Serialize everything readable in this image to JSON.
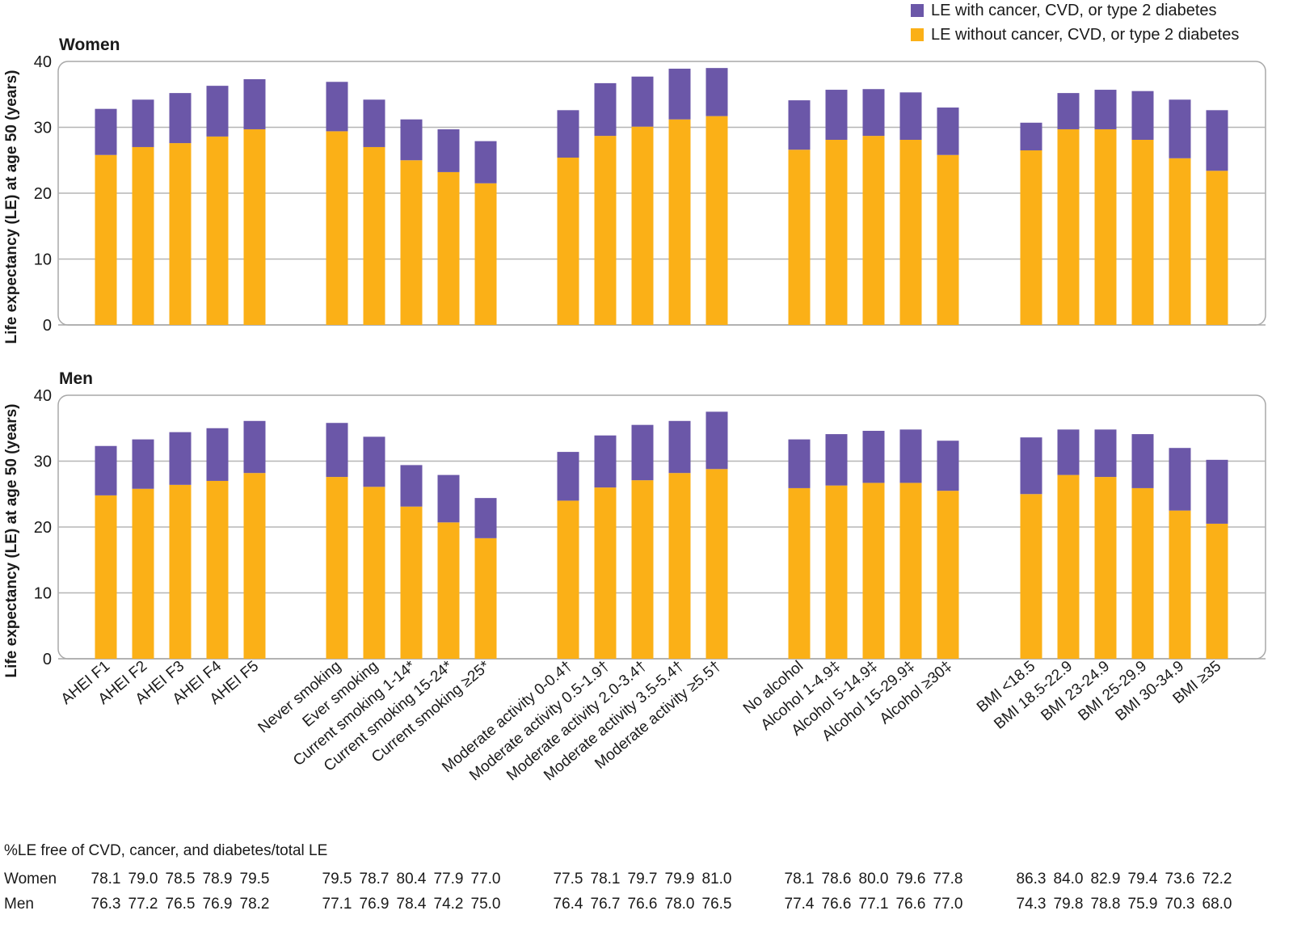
{
  "chart_data": {
    "type": "bar",
    "stacked": true,
    "legend": {
      "placement": "top-right",
      "entries": [
        {
          "name": "LE with cancer, CVD, or type 2 diabetes",
          "color": "#6b57a8"
        },
        {
          "name": "LE without cancer, CVD, or type 2 diabetes",
          "color": "#fbb017"
        }
      ]
    },
    "ylabel": "Life expectancy (LE) at age 50 (years)",
    "ylim": [
      0,
      40
    ],
    "yticks": [
      0,
      10,
      20,
      30,
      40
    ],
    "grid": true,
    "groups": [
      [
        "AHEI F1",
        "AHEI F2",
        "AHEI F3",
        "AHEI F4",
        "AHEI F5"
      ],
      [
        "Never smoking",
        "Ever smoking",
        "Current smoking 1-14*",
        "Current smoking 15-24*",
        "Current smoking ≥25*"
      ],
      [
        "Moderate activity 0-0.4†",
        "Moderate activity 0.5-1.9†",
        "Moderate activity 2.0-3.4†",
        "Moderate activity 3.5-5.4†",
        "Moderate activity ≥5.5†"
      ],
      [
        "No alcohol",
        "Alcohol 1-4.9‡",
        "Alcohol 5-14.9‡",
        "Alcohol 15-29.9‡",
        "Alcohol ≥30‡"
      ],
      [
        "BMI <18.5",
        "BMI 18.5-22.9",
        "BMI 23-24.9",
        "BMI 25-29.9",
        "BMI 30-34.9",
        "BMI ≥35"
      ]
    ],
    "panels": [
      {
        "title": "Women",
        "without": [
          25.8,
          27.0,
          27.6,
          28.6,
          29.7,
          29.4,
          27.0,
          25.0,
          23.2,
          21.5,
          25.4,
          28.7,
          30.1,
          31.2,
          31.7,
          26.6,
          28.1,
          28.7,
          28.1,
          25.8,
          26.5,
          29.7,
          29.7,
          28.1,
          25.3,
          23.4
        ],
        "with": [
          7.0,
          7.2,
          7.6,
          7.7,
          7.6,
          7.5,
          7.2,
          6.2,
          6.5,
          6.4,
          7.2,
          8.0,
          7.6,
          7.7,
          7.3,
          7.5,
          7.6,
          7.1,
          7.2,
          7.2,
          4.2,
          5.5,
          6.0,
          7.4,
          8.9,
          9.2
        ]
      },
      {
        "title": "Men",
        "without": [
          24.8,
          25.8,
          26.4,
          27.0,
          28.2,
          27.6,
          26.1,
          23.1,
          20.7,
          18.3,
          24.0,
          26.0,
          27.1,
          28.2,
          28.8,
          25.9,
          26.3,
          26.7,
          26.7,
          25.5,
          25.0,
          27.9,
          27.6,
          25.9,
          22.5,
          20.5
        ],
        "with": [
          7.5,
          7.5,
          8.0,
          8.0,
          7.9,
          8.2,
          7.6,
          6.3,
          7.2,
          6.1,
          7.4,
          7.9,
          8.4,
          7.9,
          8.7,
          7.4,
          7.8,
          7.9,
          8.1,
          7.6,
          8.6,
          6.9,
          7.2,
          8.2,
          9.5,
          9.7
        ]
      }
    ],
    "table": {
      "title": "%LE free of CVD, cancer, and diabetes/total LE",
      "rows": [
        {
          "label": "Women",
          "values": [
            "78.1",
            "79.0",
            "78.5",
            "78.9",
            "79.5",
            "79.5",
            "78.7",
            "80.4",
            "77.9",
            "77.0",
            "77.5",
            "78.1",
            "79.7",
            "79.9",
            "81.0",
            "78.1",
            "78.6",
            "80.0",
            "79.6",
            "77.8",
            "86.3",
            "84.0",
            "82.9",
            "79.4",
            "73.6",
            "72.2"
          ]
        },
        {
          "label": "Men",
          "values": [
            "76.3",
            "77.2",
            "76.5",
            "76.9",
            "78.2",
            "77.1",
            "76.9",
            "78.4",
            "74.2",
            "75.0",
            "76.4",
            "76.7",
            "76.6",
            "78.0",
            "76.5",
            "77.4",
            "76.6",
            "77.1",
            "76.6",
            "77.0",
            "74.3",
            "79.8",
            "78.8",
            "75.9",
            "70.3",
            "68.0"
          ]
        }
      ]
    }
  }
}
